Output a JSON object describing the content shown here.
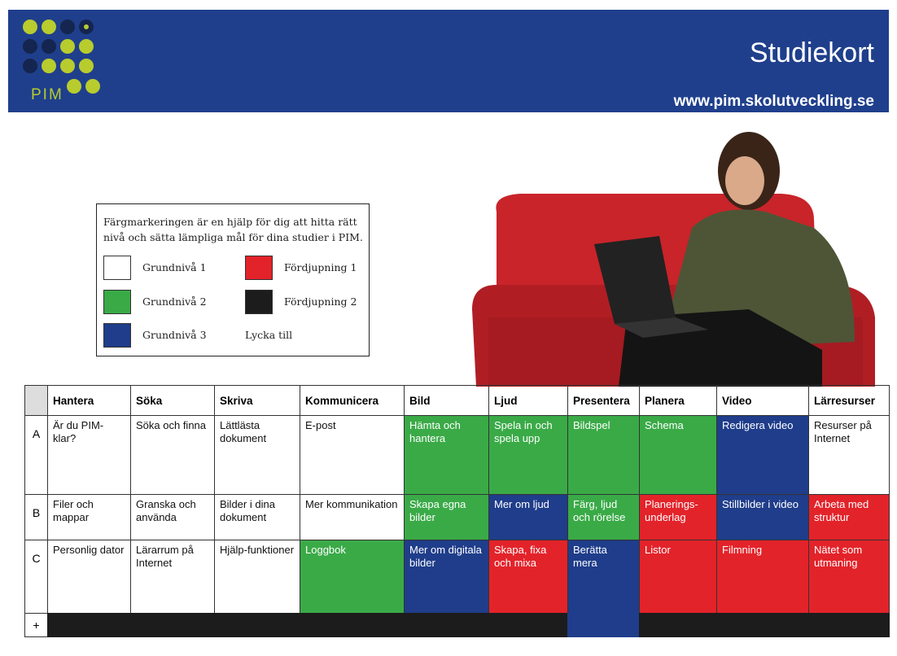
{
  "header": {
    "title": "Studiekort",
    "url": "www.pim.skolutveckling.se",
    "logo": "PIM"
  },
  "legend": {
    "intro": "Färgmarkeringen är en hjälp för dig att hitta rätt nivå och sätta lämpliga mål för dina studier i PIM.",
    "items": [
      {
        "label": "Grundnivå 1",
        "color": "#ffffff"
      },
      {
        "label": "Grundnivå 2",
        "color": "#3aaa47"
      },
      {
        "label": "Grundnivå 3",
        "color": "#1f3d8a"
      },
      {
        "label": "Fördjupning 1",
        "color": "#e3232a"
      },
      {
        "label": "Fördjupning 2",
        "color": "#1c1c1c"
      }
    ],
    "note": "Lycka till"
  },
  "table": {
    "columns": [
      "Hantera",
      "Söka",
      "Skriva",
      "Kommunicera",
      "Bild",
      "Ljud",
      "Presentera",
      "Planera",
      "Video",
      "Lärresurser"
    ],
    "rows": [
      {
        "label": "A",
        "cells": [
          {
            "text": "Är du PIM-klar?",
            "color": "#ffffff"
          },
          {
            "text": "Söka och finna",
            "color": "#ffffff"
          },
          {
            "text": "Lättlästa dokument",
            "color": "#ffffff"
          },
          {
            "text": "E-post",
            "color": "#ffffff"
          },
          {
            "text": "Hämta och hantera",
            "color": "#3aaa47"
          },
          {
            "text": "Spela in och spela upp",
            "color": "#3aaa47"
          },
          {
            "text": "Bildspel",
            "color": "#3aaa47"
          },
          {
            "text": "Schema",
            "color": "#3aaa47"
          },
          {
            "text": "Redigera video",
            "color": "#1f3d8a"
          },
          {
            "text": "Resurser på Internet",
            "color": "#ffffff"
          }
        ]
      },
      {
        "label": "B",
        "cells": [
          {
            "text": "Filer och mappar",
            "color": "#ffffff"
          },
          {
            "text": "Granska och använda",
            "color": "#ffffff"
          },
          {
            "text": "Bilder i dina dokument",
            "color": "#ffffff"
          },
          {
            "text": "Mer kommunikation",
            "color": "#ffffff"
          },
          {
            "text": "Skapa egna bilder",
            "color": "#3aaa47"
          },
          {
            "text": "Mer om ljud",
            "color": "#1f3d8a"
          },
          {
            "text": "Färg, ljud och rörelse",
            "color": "#3aaa47"
          },
          {
            "text": "Planerings-underlag",
            "color": "#e3232a"
          },
          {
            "text": "Stillbilder i video",
            "color": "#1f3d8a"
          },
          {
            "text": "Arbeta med struktur",
            "color": "#e3232a"
          }
        ]
      },
      {
        "label": "C",
        "cells": [
          {
            "text": "Personlig dator",
            "color": "#ffffff"
          },
          {
            "text": "Lärarrum på Internet",
            "color": "#ffffff"
          },
          {
            "text": "Hjälp-funktioner",
            "color": "#ffffff"
          },
          {
            "text": "Loggbok",
            "color": "#3aaa47"
          },
          {
            "text": "Mer om digitala bilder",
            "color": "#1f3d8a"
          },
          {
            "text": "Skapa, fixa och mixa",
            "color": "#e3232a"
          },
          {
            "text": "Berätta mera",
            "color": "#1f3d8a"
          },
          {
            "text": "Listor",
            "color": "#e3232a"
          },
          {
            "text": "Filmning",
            "color": "#e3232a"
          },
          {
            "text": "Nätet som utmaning",
            "color": "#e3232a"
          }
        ]
      }
    ],
    "footer": {
      "label": "+",
      "colors": [
        "#1c1c1c",
        "#1c1c1c",
        "#1c1c1c",
        "#1c1c1c",
        "#1c1c1c",
        "#1c1c1c",
        "#1f3d8a",
        "#1c1c1c",
        "#1c1c1c",
        "#1c1c1c"
      ]
    }
  }
}
